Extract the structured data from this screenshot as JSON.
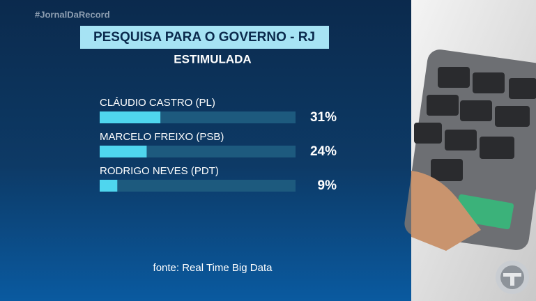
{
  "header": {
    "hashtag": "#JornalDaRecord"
  },
  "chart_data": {
    "type": "hbar",
    "title": "PESQUISA PARA O GOVERNO - RJ",
    "subtitle": "ESTIMULADA",
    "categories": [
      "CLÁUDIO CASTRO (PL)",
      "MARCELO FREIXO (PSB)",
      "RODRIGO NEVES (PDT)"
    ],
    "values": [
      31,
      24,
      9
    ],
    "value_labels": [
      "31%",
      "24%",
      "9%"
    ],
    "color": "#4fd6ee",
    "track_color": "#1d5a7e",
    "xlim": [
      0,
      100
    ],
    "source": "fonte: Real Time Big Data"
  }
}
